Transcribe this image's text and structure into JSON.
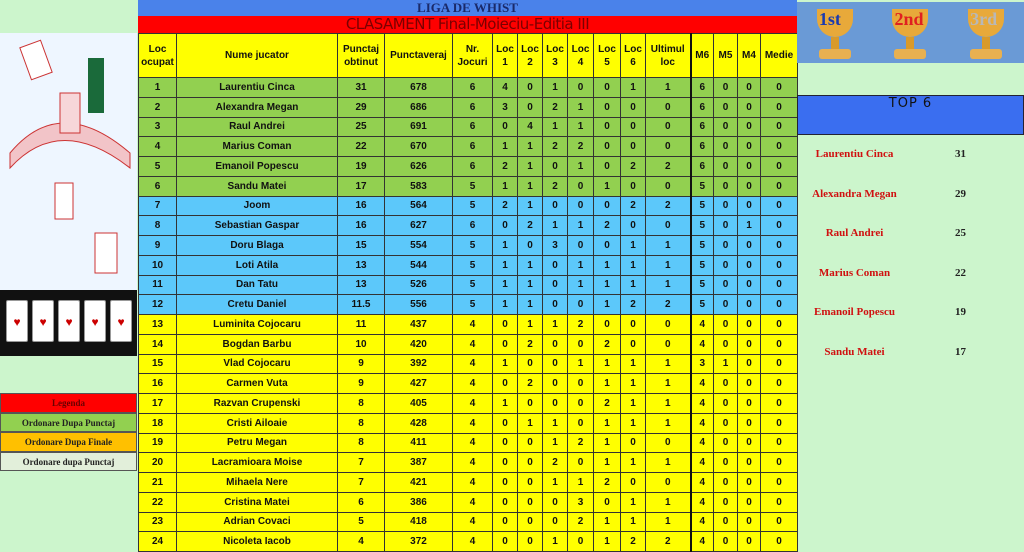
{
  "title": "LIGA DE WHIST",
  "subtitle": "CLASAMENT Final-Moieciu-Editia III",
  "columns": [
    "Loc ocupat",
    "Nume jucator",
    "Punctaj obtinut",
    "Punctaveraj",
    "Nr. Jocuri",
    "Loc 1",
    "Loc 2",
    "Loc 3",
    "Loc 4",
    "Loc 5",
    "Loc 6",
    "Ultimul loc",
    "M6",
    "M5",
    "M4",
    "Medie"
  ],
  "group_colors": {
    "green": "#92d050",
    "blue": "#5cc8fa",
    "yellow": "#ffff00"
  },
  "rows": [
    {
      "g": "g",
      "v": [
        "1",
        "Laurentiu Cinca",
        "31",
        "678",
        "6",
        "4",
        "0",
        "1",
        "0",
        "0",
        "1",
        "1",
        "6",
        "0",
        "0",
        "0"
      ]
    },
    {
      "g": "g",
      "v": [
        "2",
        "Alexandra Megan",
        "29",
        "686",
        "6",
        "3",
        "0",
        "2",
        "1",
        "0",
        "0",
        "0",
        "6",
        "0",
        "0",
        "0"
      ]
    },
    {
      "g": "g",
      "v": [
        "3",
        "Raul Andrei",
        "25",
        "691",
        "6",
        "0",
        "4",
        "1",
        "1",
        "0",
        "0",
        "0",
        "6",
        "0",
        "0",
        "0"
      ]
    },
    {
      "g": "g",
      "v": [
        "4",
        "Marius Coman",
        "22",
        "670",
        "6",
        "1",
        "1",
        "2",
        "2",
        "0",
        "0",
        "0",
        "6",
        "0",
        "0",
        "0"
      ]
    },
    {
      "g": "g",
      "v": [
        "5",
        "Emanoil Popescu",
        "19",
        "626",
        "6",
        "2",
        "1",
        "0",
        "1",
        "0",
        "2",
        "2",
        "6",
        "0",
        "0",
        "0"
      ]
    },
    {
      "g": "g",
      "v": [
        "6",
        "Sandu Matei",
        "17",
        "583",
        "5",
        "1",
        "1",
        "2",
        "0",
        "1",
        "0",
        "0",
        "5",
        "0",
        "0",
        "0"
      ]
    },
    {
      "g": "b",
      "v": [
        "7",
        "Joom",
        "16",
        "564",
        "5",
        "2",
        "1",
        "0",
        "0",
        "0",
        "2",
        "2",
        "5",
        "0",
        "0",
        "0"
      ]
    },
    {
      "g": "b",
      "v": [
        "8",
        "Sebastian Gaspar",
        "16",
        "627",
        "6",
        "0",
        "2",
        "1",
        "1",
        "2",
        "0",
        "0",
        "5",
        "0",
        "1",
        "0"
      ]
    },
    {
      "g": "b",
      "v": [
        "9",
        "Doru Blaga",
        "15",
        "554",
        "5",
        "1",
        "0",
        "3",
        "0",
        "0",
        "1",
        "1",
        "5",
        "0",
        "0",
        "0"
      ]
    },
    {
      "g": "b",
      "v": [
        "10",
        "Loti Atila",
        "13",
        "544",
        "5",
        "1",
        "1",
        "0",
        "1",
        "1",
        "1",
        "1",
        "5",
        "0",
        "0",
        "0"
      ]
    },
    {
      "g": "b",
      "v": [
        "11",
        "Dan Tatu",
        "13",
        "526",
        "5",
        "1",
        "1",
        "0",
        "1",
        "1",
        "1",
        "1",
        "5",
        "0",
        "0",
        "0"
      ]
    },
    {
      "g": "b",
      "v": [
        "12",
        "Cretu Daniel",
        "11.5",
        "556",
        "5",
        "1",
        "1",
        "0",
        "0",
        "1",
        "2",
        "2",
        "5",
        "0",
        "0",
        "0"
      ]
    },
    {
      "g": "y",
      "v": [
        "13",
        "Luminita Cojocaru",
        "11",
        "437",
        "4",
        "0",
        "1",
        "1",
        "2",
        "0",
        "0",
        "0",
        "4",
        "0",
        "0",
        "0"
      ]
    },
    {
      "g": "y",
      "v": [
        "14",
        "Bogdan Barbu",
        "10",
        "420",
        "4",
        "0",
        "2",
        "0",
        "0",
        "2",
        "0",
        "0",
        "4",
        "0",
        "0",
        "0"
      ]
    },
    {
      "g": "y",
      "v": [
        "15",
        "Vlad Cojocaru",
        "9",
        "392",
        "4",
        "1",
        "0",
        "0",
        "1",
        "1",
        "1",
        "1",
        "3",
        "1",
        "0",
        "0"
      ]
    },
    {
      "g": "y",
      "v": [
        "16",
        "Carmen Vuta",
        "9",
        "427",
        "4",
        "0",
        "2",
        "0",
        "0",
        "1",
        "1",
        "1",
        "4",
        "0",
        "0",
        "0"
      ]
    },
    {
      "g": "y",
      "v": [
        "17",
        "Razvan Crupenski",
        "8",
        "405",
        "4",
        "1",
        "0",
        "0",
        "0",
        "2",
        "1",
        "1",
        "4",
        "0",
        "0",
        "0"
      ]
    },
    {
      "g": "y",
      "v": [
        "18",
        "Cristi Ailoaie",
        "8",
        "428",
        "4",
        "0",
        "1",
        "1",
        "0",
        "1",
        "1",
        "1",
        "4",
        "0",
        "0",
        "0"
      ]
    },
    {
      "g": "y",
      "v": [
        "19",
        "Petru Megan",
        "8",
        "411",
        "4",
        "0",
        "0",
        "1",
        "2",
        "1",
        "0",
        "0",
        "4",
        "0",
        "0",
        "0"
      ]
    },
    {
      "g": "y",
      "v": [
        "20",
        "Lacramioara Moise",
        "7",
        "387",
        "4",
        "0",
        "0",
        "2",
        "0",
        "1",
        "1",
        "1",
        "4",
        "0",
        "0",
        "0"
      ]
    },
    {
      "g": "y",
      "v": [
        "21",
        "Mihaela Nere",
        "7",
        "421",
        "4",
        "0",
        "0",
        "1",
        "1",
        "2",
        "0",
        "0",
        "4",
        "0",
        "0",
        "0"
      ]
    },
    {
      "g": "y",
      "v": [
        "22",
        "Cristina Matei",
        "6",
        "386",
        "4",
        "0",
        "0",
        "0",
        "3",
        "0",
        "1",
        "1",
        "4",
        "0",
        "0",
        "0"
      ]
    },
    {
      "g": "y",
      "v": [
        "23",
        "Adrian Covaci",
        "5",
        "418",
        "4",
        "0",
        "0",
        "0",
        "2",
        "1",
        "1",
        "1",
        "4",
        "0",
        "0",
        "0"
      ]
    },
    {
      "g": "y",
      "v": [
        "24",
        "Nicoleta Iacob",
        "4",
        "372",
        "4",
        "0",
        "0",
        "1",
        "0",
        "1",
        "2",
        "2",
        "4",
        "0",
        "0",
        "0"
      ]
    }
  ],
  "legend": {
    "title": "Legenda",
    "items": [
      {
        "label": "Ordonare Dupa Punctaj",
        "color": "#92d050"
      },
      {
        "label": "Ordonare Dupa Finale",
        "color": "#ffc000"
      },
      {
        "label": "Ordonare dupa Punctaj",
        "color": "#e2efda"
      }
    ]
  },
  "trophies": [
    {
      "label": "1st",
      "color": "#1a3ab0"
    },
    {
      "label": "2nd",
      "color": "#e02020"
    },
    {
      "label": "3rd",
      "color": "#b8b8b8"
    }
  ],
  "top6": {
    "title": "TOP 6",
    "items": [
      {
        "name": "Laurentiu Cinca",
        "score": "31"
      },
      {
        "name": "Alexandra Megan",
        "score": "29"
      },
      {
        "name": "Raul Andrei",
        "score": "25"
      },
      {
        "name": "Marius Coman",
        "score": "22"
      },
      {
        "name": "Emanoil Popescu",
        "score": "19"
      },
      {
        "name": "Sandu Matei",
        "score": "17"
      }
    ]
  }
}
